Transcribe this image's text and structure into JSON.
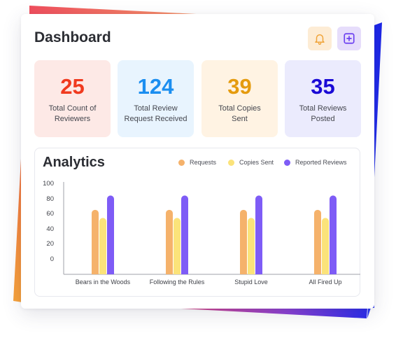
{
  "header": {
    "title": "Dashboard",
    "bell_icon": "bell-icon",
    "add_icon": "plus-square-icon"
  },
  "stats": [
    {
      "value": "25",
      "label": "Total Count of Reviewers",
      "color": "#f03a1f",
      "bg": "#fde9e6"
    },
    {
      "value": "124",
      "label": "Total Review Request Received",
      "color": "#1b8ef0",
      "bg": "#e8f4fe"
    },
    {
      "value": "39",
      "label": "Total Copies Sent",
      "color": "#e59b0e",
      "bg": "#fff3e3"
    },
    {
      "value": "35",
      "label": "Total Reviews Posted",
      "color": "#1a0ad6",
      "bg": "#ebebfd"
    }
  ],
  "analytics": {
    "title": "Analytics"
  },
  "chart_data": {
    "type": "bar",
    "title": "Analytics",
    "categories": [
      "Bears in the Woods",
      "Following the Rules",
      "Stupid Love",
      "All Fired Up"
    ],
    "series": [
      {
        "name": "Requests",
        "values": [
          72,
          72,
          72,
          72
        ],
        "color": "#f5b26b"
      },
      {
        "name": "Copies Sent",
        "values": [
          63,
          63,
          63,
          63
        ],
        "color": "#fbe37a"
      },
      {
        "name": "Reported Reviews",
        "values": [
          88,
          88,
          88,
          88
        ],
        "color": "#7e5cf6"
      }
    ],
    "yticks": [
      "0",
      "20",
      "40",
      "60",
      "80",
      "100"
    ],
    "legend_position": "top-right",
    "grid": false
  }
}
